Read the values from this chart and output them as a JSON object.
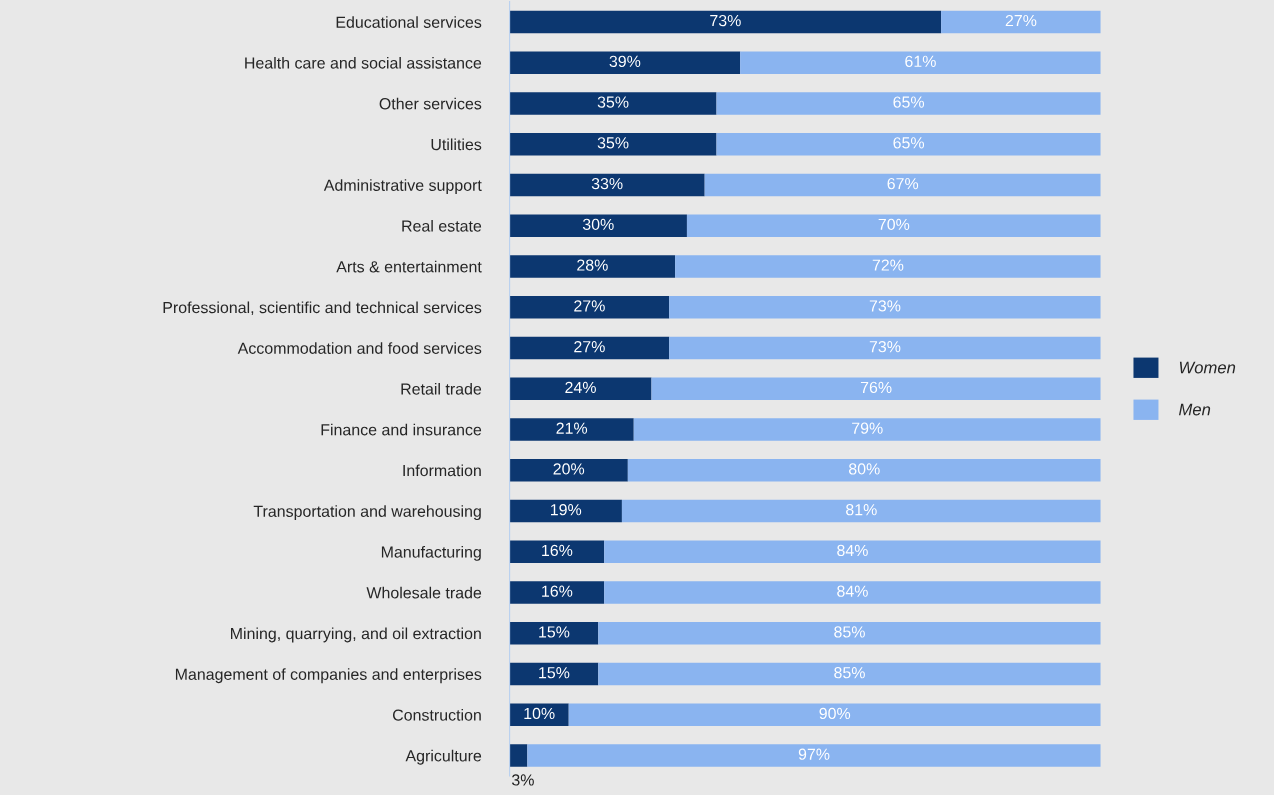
{
  "chart_data": {
    "type": "bar",
    "orientation": "horizontal",
    "stacked": true,
    "legend": "right",
    "grid": false,
    "categories": [
      "Educational services",
      "Health care and social assistance",
      "Other services",
      "Utilities",
      "Administrative support",
      "Real estate",
      "Arts & entertainment",
      "Professional, scientific and technical services",
      "Accommodation and food services",
      "Retail trade",
      "Finance and insurance",
      "Information",
      "Transportation and warehousing",
      "Manufacturing",
      "Wholesale trade",
      "Mining, quarrying, and oil extraction",
      "Management of companies and enterprises",
      "Construction",
      "Agriculture"
    ],
    "series": [
      {
        "name": "Women",
        "color": "#0c3770",
        "values": [
          73,
          39,
          35,
          35,
          33,
          30,
          28,
          27,
          27,
          24,
          21,
          20,
          19,
          16,
          16,
          15,
          15,
          10,
          3
        ],
        "value_labels": [
          "73%",
          "39%",
          "35%",
          "35%",
          "33%",
          "30%",
          "28%",
          "27%",
          "27%",
          "24%",
          "21%",
          "20%",
          "19%",
          "16%",
          "16%",
          "15%",
          "15%",
          "10%",
          "3%"
        ]
      },
      {
        "name": "Men",
        "color": "#8ab4f0",
        "values": [
          27,
          61,
          65,
          65,
          67,
          70,
          72,
          73,
          73,
          76,
          79,
          80,
          81,
          84,
          84,
          85,
          85,
          90,
          97
        ],
        "value_labels": [
          "27%",
          "61%",
          "65%",
          "65%",
          "67%",
          "70%",
          "72%",
          "73%",
          "73%",
          "76%",
          "79%",
          "80%",
          "81%",
          "84%",
          "84%",
          "85%",
          "85%",
          "90%",
          "97%"
        ]
      }
    ]
  }
}
